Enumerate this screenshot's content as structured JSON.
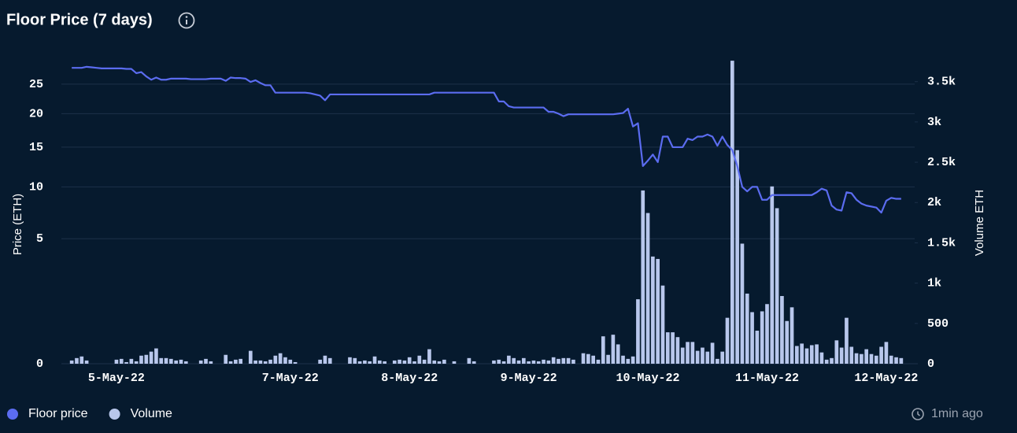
{
  "chart_data": {
    "type": "combo",
    "title": "Floor Price (7 days)",
    "y_label": "Price (ETH)",
    "y2_label": "Volume ETH",
    "updated": "1min ago",
    "y_scale": "sqrt",
    "grid": true,
    "legend": "bottom-left",
    "categories": [
      null,
      null,
      null,
      null,
      null,
      null,
      null,
      null,
      null,
      "5-May-22",
      null,
      null,
      null,
      null,
      null,
      null,
      null,
      null,
      null,
      null,
      null,
      null,
      null,
      null,
      null,
      null,
      null,
      null,
      null,
      null,
      null,
      null,
      null,
      null,
      null,
      null,
      null,
      null,
      null,
      null,
      null,
      null,
      null,
      null,
      "7-May-22",
      null,
      null,
      null,
      null,
      null,
      null,
      null,
      null,
      null,
      null,
      null,
      null,
      null,
      null,
      null,
      null,
      null,
      null,
      null,
      null,
      null,
      null,
      null,
      "8-May-22",
      null,
      null,
      null,
      null,
      null,
      null,
      null,
      null,
      null,
      null,
      null,
      null,
      null,
      null,
      null,
      null,
      null,
      null,
      null,
      null,
      null,
      null,
      null,
      "9-May-22",
      null,
      null,
      null,
      null,
      null,
      null,
      null,
      null,
      null,
      null,
      null,
      null,
      null,
      null,
      null,
      null,
      null,
      null,
      null,
      null,
      null,
      null,
      null,
      "10-May-22",
      null,
      null,
      null,
      null,
      null,
      null,
      null,
      null,
      null,
      null,
      null,
      null,
      null,
      null,
      null,
      null,
      null,
      null,
      null,
      null,
      null,
      null,
      null,
      "11-May-22",
      null,
      null,
      null,
      null,
      null,
      null,
      null,
      null,
      null,
      null,
      null,
      null,
      null,
      null,
      null,
      null,
      null,
      null,
      null,
      null,
      null,
      null,
      null,
      "12-May-22",
      null,
      null,
      null
    ],
    "ylim": [
      0,
      30
    ],
    "yticks": [
      0,
      5,
      10,
      15,
      20,
      25
    ],
    "y2lim": [
      0,
      3800
    ],
    "y2ticks": [
      0,
      500,
      {
        "value": 1000,
        "label": "1k"
      },
      {
        "value": 1500,
        "label": "1.5k"
      },
      {
        "value": 2000,
        "label": "2k"
      },
      {
        "value": 2500,
        "label": "2.5k"
      },
      {
        "value": 3000,
        "label": "3k"
      },
      {
        "value": 3500,
        "label": "3.5k"
      }
    ],
    "series": [
      {
        "name": "Floor price",
        "type": "line",
        "color": "#5b6cf0",
        "values": [
          28,
          28,
          28,
          28.2,
          28.1,
          28,
          27.9,
          27.9,
          27.9,
          27.9,
          27.9,
          27.8,
          27.8,
          27,
          27.2,
          26.4,
          25.8,
          26.2,
          25.8,
          25.8,
          26,
          26,
          26,
          26,
          25.9,
          25.9,
          25.9,
          25.9,
          26,
          26,
          26,
          25.6,
          26.2,
          26.1,
          26.1,
          26,
          25.4,
          25.7,
          25.2,
          24.8,
          24.8,
          23.5,
          23.5,
          23.5,
          23.5,
          23.5,
          23.5,
          23.5,
          23.4,
          23.2,
          23,
          22.2,
          23.2,
          23.2,
          23.2,
          23.2,
          23.2,
          23.2,
          23.2,
          23.2,
          23.2,
          23.2,
          23.2,
          23.2,
          23.2,
          23.2,
          23.2,
          23.2,
          23.2,
          23.2,
          23.2,
          23.2,
          23.2,
          23.5,
          23.5,
          23.5,
          23.5,
          23.5,
          23.5,
          23.5,
          23.5,
          23.5,
          23.5,
          23.5,
          23.5,
          23.5,
          22,
          22,
          21.2,
          21,
          21,
          21,
          21,
          21,
          21,
          21,
          20.3,
          20.3,
          20,
          19.6,
          19.9,
          19.9,
          19.9,
          19.9,
          19.9,
          19.9,
          19.9,
          19.9,
          19.9,
          19.9,
          20,
          20.1,
          20.8,
          18,
          18.5,
          12.5,
          13.2,
          14,
          13,
          16.5,
          16.5,
          15,
          15,
          15,
          16.2,
          16,
          16.5,
          16.5,
          16.8,
          16.5,
          15.2,
          16.5,
          15.3,
          14.6,
          12.5,
          10,
          9.5,
          10,
          10,
          8.6,
          8.6,
          9.1,
          9.1,
          9.1,
          9.1,
          9.1,
          9.1,
          9.1,
          9.1,
          9.1,
          9.4,
          9.8,
          9.6,
          8,
          7.6,
          7.5,
          9.4,
          9.3,
          8.6,
          8.2,
          8,
          7.9,
          7.8,
          7.3,
          8.5,
          8.8,
          8.7,
          8.7
        ]
      },
      {
        "name": "Volume",
        "type": "bar",
        "axis": "y2",
        "color": "#b8c7ec",
        "values": [
          40,
          70,
          90,
          40,
          0,
          0,
          0,
          0,
          0,
          50,
          60,
          20,
          60,
          30,
          100,
          110,
          150,
          190,
          70,
          70,
          60,
          40,
          50,
          30,
          0,
          0,
          40,
          60,
          30,
          0,
          0,
          110,
          30,
          50,
          60,
          0,
          160,
          40,
          40,
          30,
          50,
          100,
          130,
          80,
          50,
          20,
          0,
          0,
          0,
          0,
          50,
          100,
          70,
          0,
          0,
          0,
          80,
          70,
          30,
          40,
          30,
          90,
          40,
          30,
          0,
          40,
          50,
          40,
          80,
          30,
          100,
          50,
          180,
          40,
          30,
          50,
          0,
          30,
          0,
          0,
          70,
          30,
          0,
          0,
          0,
          40,
          50,
          30,
          100,
          70,
          40,
          70,
          30,
          40,
          30,
          50,
          40,
          80,
          60,
          70,
          70,
          50,
          0,
          130,
          120,
          100,
          50,
          340,
          110,
          360,
          240,
          100,
          60,
          90,
          800,
          2150,
          1870,
          1330,
          1300,
          970,
          390,
          390,
          330,
          200,
          270,
          270,
          160,
          200,
          150,
          260,
          60,
          150,
          570,
          3760,
          2650,
          1490,
          870,
          640,
          410,
          650,
          740,
          2200,
          1930,
          840,
          530,
          700,
          220,
          250,
          190,
          230,
          240,
          140,
          50,
          70,
          290,
          200,
          570,
          210,
          130,
          120,
          180,
          120,
          100,
          210,
          270,
          100,
          80,
          70
        ]
      }
    ]
  }
}
